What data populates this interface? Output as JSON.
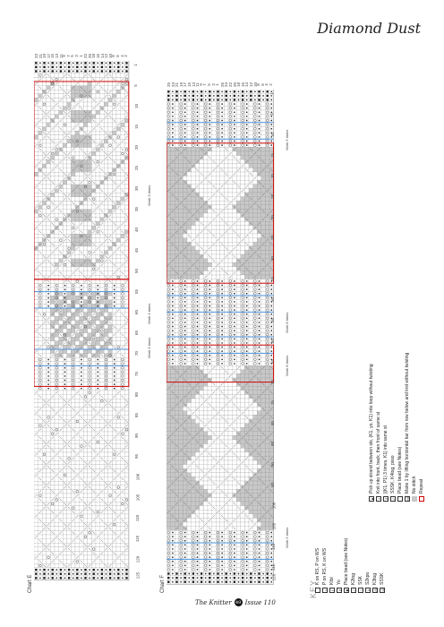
{
  "page": {
    "title": "Diamond Dust",
    "footer_magazine": "The Knitter",
    "footer_page": "49",
    "footer_issue": "Issue 110"
  },
  "chart_e": {
    "label": "Chart E",
    "row_numbers": [
      "1",
      "5",
      "10",
      "15",
      "20",
      "25",
      "30",
      "35",
      "40",
      "45",
      "50",
      "55",
      "60",
      "65",
      "70",
      "75",
      "80",
      "85",
      "90",
      "95",
      "100",
      "105",
      "110",
      "115",
      "120",
      "125"
    ],
    "col_numbers": [
      "23",
      "21",
      "19",
      "17",
      "15",
      "13",
      "11",
      "9",
      "7",
      "5",
      "3",
      "1",
      "22",
      "20",
      "18",
      "16",
      "14",
      "12",
      "10",
      "8",
      "6",
      "4",
      "2"
    ],
    "repeat_labels": [
      "Work 3 times",
      "Work 4 times",
      "Work 4 times"
    ]
  },
  "chart_f": {
    "label": "Chart F",
    "row_numbers": [
      "1",
      "5",
      "10",
      "15",
      "20",
      "25",
      "30",
      "35",
      "40",
      "45",
      "50",
      "55",
      "60",
      "65",
      "70",
      "75",
      "80",
      "85",
      "90",
      "95",
      "100",
      "105",
      "110",
      "115",
      "120"
    ],
    "col_numbers": [
      "25",
      "23",
      "21",
      "19",
      "17",
      "15",
      "13",
      "11",
      "9",
      "7",
      "5",
      "3",
      "1",
      "26",
      "24",
      "22",
      "20",
      "18",
      "16",
      "14",
      "12",
      "10",
      "8",
      "6",
      "4",
      "2"
    ],
    "repeat_labels": [
      "Work 5 times",
      "Work 8 times",
      "Work 8 times",
      "Work 5 times"
    ]
  },
  "key": {
    "title": "KEY",
    "items": [
      {
        "symbol": "",
        "text": "K on RS, P on WS",
        "icon": "blank-square"
      },
      {
        "symbol": "•",
        "text": "P on RS, K on WS",
        "icon": "dot-square"
      },
      {
        "symbol": "ℓ",
        "text": "Ktbl",
        "icon": "ktbl-square"
      },
      {
        "symbol": "o",
        "text": "Yo",
        "icon": "yo-square"
      },
      {
        "symbol": "■",
        "text": "Place bead (see Notes)",
        "icon": "bead-square"
      },
      {
        "symbol": "/",
        "text": "K2tog",
        "icon": "k2tog-square"
      },
      {
        "symbol": "\\",
        "text": "SSK",
        "icon": "ssk-square"
      },
      {
        "symbol": "λ",
        "text": "S2kpo",
        "icon": "s2kpo-square"
      },
      {
        "symbol": "/3",
        "text": "K3tog",
        "icon": "k3tog-square"
      },
      {
        "symbol": "\\3",
        "text": "SSSK",
        "icon": "sssk-square"
      },
      {
        "symbol": "▲",
        "text": "Pick up strand between sts, (K1, yo, K1) into loop without twisting",
        "icon": "pickup-square"
      },
      {
        "symbol": "∩",
        "text": "Knit into front, back, then front of same st",
        "icon": "kfbf-square"
      },
      {
        "symbol": "3",
        "text": "[(K1, P1) 3 times, K1] into same st",
        "icon": "k1p1-square"
      },
      {
        "symbol": "⁄",
        "text": "SSSK, K4tog, psso",
        "icon": "ssk-k4tog-square"
      },
      {
        "symbol": "",
        "text": "Place bead (see Notes)",
        "icon": "bead-square-2"
      },
      {
        "symbol": "M",
        "text": "Make 1 by lifting horizontal bar from row below and knit without twisting",
        "icon": "m1-square"
      },
      {
        "symbol": "",
        "text": "No stitch",
        "icon": "no-stitch-square"
      },
      {
        "symbol": "",
        "text": "Repeat",
        "icon": "repeat-square"
      }
    ]
  }
}
